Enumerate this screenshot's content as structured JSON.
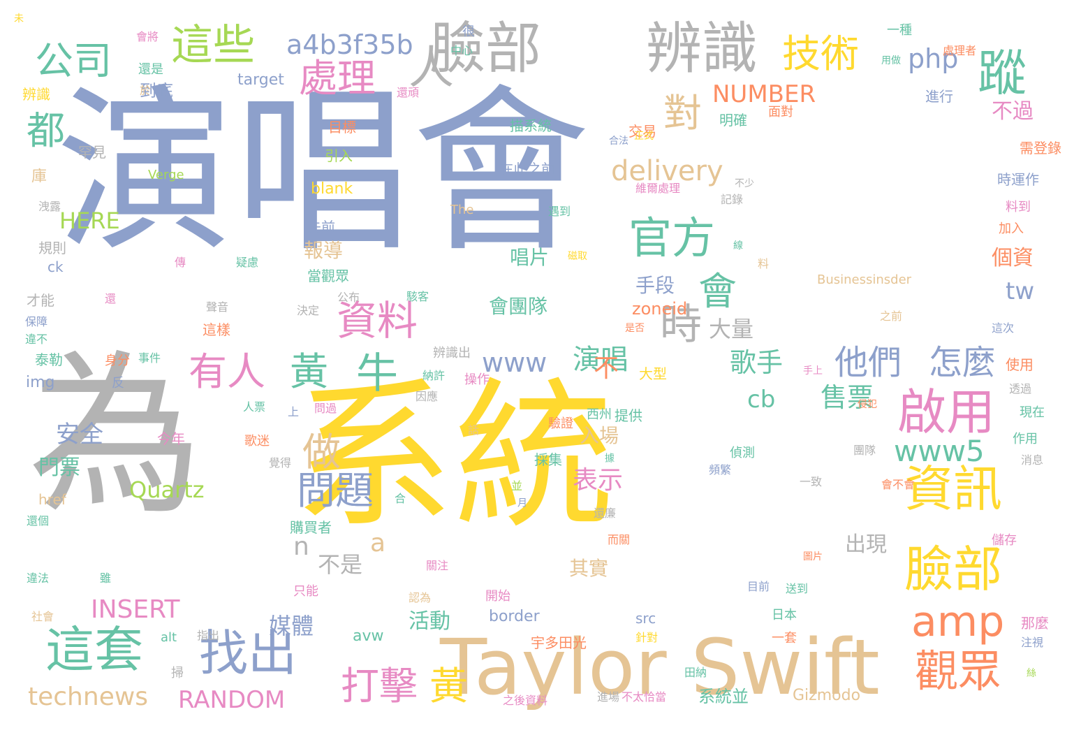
{
  "palette": {
    "slate": "#8da0cb",
    "gray": "#b3b3b3",
    "yellow": "#ffd92f",
    "tan": "#e5c494",
    "green": "#66c2a5",
    "orange": "#fc8d62",
    "pink": "#e78ac3",
    "lime": "#a6d854"
  },
  "words": [
    {
      "text": "演唱會",
      "color": "slate"
    },
    {
      "text": "為",
      "color": "gray"
    },
    {
      "text": "系統",
      "color": "yellow"
    },
    {
      "text": "Taylor Swift",
      "color": "tan"
    },
    {
      "text": "臉部",
      "color": "gray"
    },
    {
      "text": "辨識",
      "color": "gray"
    },
    {
      "text": "人",
      "color": "gray"
    },
    {
      "text": "這些",
      "color": "lime"
    },
    {
      "text": "公司",
      "color": "green"
    },
    {
      "text": "技術",
      "color": "yellow"
    },
    {
      "text": "蹤",
      "color": "green"
    },
    {
      "text": "a4b3f35b",
      "color": "slate"
    },
    {
      "text": "處理",
      "color": "pink"
    },
    {
      "text": "php",
      "color": "slate"
    },
    {
      "text": "對",
      "color": "tan"
    },
    {
      "text": "官方",
      "color": "green"
    },
    {
      "text": "會",
      "color": "green"
    },
    {
      "text": "時",
      "color": "gray"
    },
    {
      "text": "資料",
      "color": "pink"
    },
    {
      "text": "有人",
      "color": "pink"
    },
    {
      "text": "黃",
      "color": "green"
    },
    {
      "text": "牛",
      "color": "green"
    },
    {
      "text": "啟用",
      "color": "pink"
    },
    {
      "text": "資訊",
      "color": "yellow"
    },
    {
      "text": "臉部",
      "color": "yellow"
    },
    {
      "text": "amp",
      "color": "orange"
    },
    {
      "text": "觀眾",
      "color": "orange"
    },
    {
      "text": "這套",
      "color": "green"
    },
    {
      "text": "找出",
      "color": "slate"
    },
    {
      "text": "打擊",
      "color": "pink"
    },
    {
      "text": "黃",
      "color": "yellow"
    },
    {
      "text": "做",
      "color": "tan"
    },
    {
      "text": "問題",
      "color": "slate"
    },
    {
      "text": "他們",
      "color": "slate"
    },
    {
      "text": "怎麼",
      "color": "slate"
    },
    {
      "text": "delivery",
      "color": "tan"
    },
    {
      "text": "NUMBER",
      "color": "orange"
    },
    {
      "text": "都",
      "color": "green"
    },
    {
      "text": "www5",
      "color": "green"
    },
    {
      "text": "tw",
      "color": "slate"
    },
    {
      "text": "歌手",
      "color": "green"
    },
    {
      "text": "cb",
      "color": "green"
    },
    {
      "text": "售票",
      "color": "green"
    },
    {
      "text": "www",
      "color": "slate"
    },
    {
      "text": "演唱",
      "color": "green"
    },
    {
      "text": "technews",
      "color": "tan"
    },
    {
      "text": "RANDOM",
      "color": "pink"
    },
    {
      "text": "INSERT",
      "color": "pink"
    },
    {
      "text": "Quartz",
      "color": "lime"
    },
    {
      "text": "HERE",
      "color": "lime"
    },
    {
      "text": "表示",
      "color": "pink"
    },
    {
      "text": "不",
      "color": "orange"
    },
    {
      "text": "入場",
      "color": "tan"
    },
    {
      "text": "大量",
      "color": "gray"
    },
    {
      "text": "個資",
      "color": "orange"
    },
    {
      "text": "不過",
      "color": "pink"
    },
    {
      "text": "安全",
      "color": "slate"
    },
    {
      "text": "門票",
      "color": "green"
    },
    {
      "text": "媒體",
      "color": "slate"
    },
    {
      "text": "活動",
      "color": "green"
    },
    {
      "text": "a",
      "color": "tan"
    },
    {
      "text": "n",
      "color": "gray"
    },
    {
      "text": "不是",
      "color": "gray"
    },
    {
      "text": "出現",
      "color": "gray"
    },
    {
      "text": "其實",
      "color": "tan"
    },
    {
      "text": "手段",
      "color": "slate"
    },
    {
      "text": "會團隊",
      "color": "green"
    },
    {
      "text": "唱片",
      "color": "green"
    },
    {
      "text": "報導",
      "color": "tan"
    },
    {
      "text": "zoneid",
      "color": "orange"
    },
    {
      "text": "系統並",
      "color": "green"
    },
    {
      "text": "Gizmodo",
      "color": "tan"
    },
    {
      "text": "border",
      "color": "slate"
    },
    {
      "text": "avw",
      "color": "green"
    },
    {
      "text": "img",
      "color": "slate"
    },
    {
      "text": "到底",
      "color": "slate"
    },
    {
      "text": "target",
      "color": "slate"
    },
    {
      "text": "描系統",
      "color": "green"
    },
    {
      "text": "在此之前",
      "color": "slate"
    },
    {
      "text": "交易",
      "color": "orange"
    },
    {
      "text": "明確",
      "color": "green"
    },
    {
      "text": "面對",
      "color": "orange"
    },
    {
      "text": "blank",
      "color": "yellow"
    },
    {
      "text": "Verge",
      "color": "lime"
    },
    {
      "text": "The",
      "color": "tan"
    },
    {
      "text": "Businessinsder",
      "color": "tan"
    },
    {
      "text": "先前",
      "color": "slate"
    },
    {
      "text": "當觀眾",
      "color": "green"
    },
    {
      "text": "引入",
      "color": "lime"
    },
    {
      "text": "目標",
      "color": "orange"
    },
    {
      "text": "維爾處理",
      "color": "pink"
    },
    {
      "text": "記錄",
      "color": "gray"
    },
    {
      "text": "遇到",
      "color": "green"
    },
    {
      "text": "提供",
      "color": "green"
    },
    {
      "text": "採集",
      "color": "green"
    },
    {
      "text": "驗證",
      "color": "orange"
    },
    {
      "text": "西州",
      "color": "green"
    },
    {
      "text": "大型",
      "color": "yellow"
    },
    {
      "text": "操作",
      "color": "pink"
    },
    {
      "text": "辨識出",
      "color": "gray"
    },
    {
      "text": "納許",
      "color": "green"
    },
    {
      "text": "因應",
      "color": "gray"
    },
    {
      "text": "一種",
      "color": "green"
    },
    {
      "text": "處理者",
      "color": "orange"
    },
    {
      "text": "中心",
      "color": "green"
    },
    {
      "text": "很",
      "color": "slate"
    },
    {
      "text": "會將",
      "color": "pink"
    },
    {
      "text": "還是",
      "color": "green"
    },
    {
      "text": "於",
      "color": "tan"
    },
    {
      "text": "辨識",
      "color": "yellow"
    },
    {
      "text": "還頑",
      "color": "pink"
    },
    {
      "text": "罕見",
      "color": "gray"
    },
    {
      "text": "庫",
      "color": "tan"
    },
    {
      "text": "洩露",
      "color": "gray"
    },
    {
      "text": "規則",
      "color": "gray"
    },
    {
      "text": "ck",
      "color": "slate"
    },
    {
      "text": "才能",
      "color": "gray"
    },
    {
      "text": "保障",
      "color": "slate"
    },
    {
      "text": "違不",
      "color": "green"
    },
    {
      "text": "泰勒",
      "color": "green"
    },
    {
      "text": "傳",
      "color": "pink"
    },
    {
      "text": "疑慮",
      "color": "green"
    },
    {
      "text": "還",
      "color": "pink"
    },
    {
      "text": "聲音",
      "color": "gray"
    },
    {
      "text": "公布",
      "color": "gray"
    },
    {
      "text": "決定",
      "color": "gray"
    },
    {
      "text": "駭客",
      "color": "green"
    },
    {
      "text": "這樣",
      "color": "orange"
    },
    {
      "text": "身分",
      "color": "orange"
    },
    {
      "text": "事件",
      "color": "green"
    },
    {
      "text": "反",
      "color": "slate"
    },
    {
      "text": "人票",
      "color": "green"
    },
    {
      "text": "上",
      "color": "slate"
    },
    {
      "text": "問過",
      "color": "pink"
    },
    {
      "text": "今年",
      "color": "pink"
    },
    {
      "text": "歌迷",
      "color": "orange"
    },
    {
      "text": "覺得",
      "color": "gray"
    },
    {
      "text": "href",
      "color": "tan"
    },
    {
      "text": "合",
      "color": "green"
    },
    {
      "text": "還個",
      "color": "green"
    },
    {
      "text": "違法",
      "color": "green"
    },
    {
      "text": "雖",
      "color": "green"
    },
    {
      "text": "社會",
      "color": "tan"
    },
    {
      "text": "alt",
      "color": "green"
    },
    {
      "text": "指出",
      "color": "gray"
    },
    {
      "text": "掃",
      "color": "gray"
    },
    {
      "text": "只能",
      "color": "pink"
    },
    {
      "text": "認為",
      "color": "tan"
    },
    {
      "text": "關注",
      "color": "pink"
    },
    {
      "text": "購買者",
      "color": "green"
    },
    {
      "text": "開始",
      "color": "pink"
    },
    {
      "text": "src",
      "color": "slate"
    },
    {
      "text": "宇多田光",
      "color": "orange"
    },
    {
      "text": "針對",
      "color": "yellow"
    },
    {
      "text": "田納",
      "color": "green"
    },
    {
      "text": "之後資料",
      "color": "pink"
    },
    {
      "text": "進場",
      "color": "gray"
    },
    {
      "text": "不太恰當",
      "color": "pink"
    },
    {
      "text": "一套",
      "color": "orange"
    },
    {
      "text": "日本",
      "color": "green"
    },
    {
      "text": "送到",
      "color": "green"
    },
    {
      "text": "目前",
      "color": "slate"
    },
    {
      "text": "還廉",
      "color": "gray"
    },
    {
      "text": "而關",
      "color": "orange"
    },
    {
      "text": "圖片",
      "color": "orange"
    },
    {
      "text": "會不會",
      "color": "orange"
    },
    {
      "text": "一致",
      "color": "gray"
    },
    {
      "text": "頻繁",
      "color": "slate"
    },
    {
      "text": "偵測",
      "color": "green"
    },
    {
      "text": "據",
      "color": "green"
    },
    {
      "text": "並",
      "color": "lime"
    },
    {
      "text": "月",
      "color": "slate"
    },
    {
      "text": "話",
      "color": "tan"
    },
    {
      "text": "儲存",
      "color": "pink"
    },
    {
      "text": "那麼",
      "color": "pink"
    },
    {
      "text": "注視",
      "color": "slate"
    },
    {
      "text": "絲",
      "color": "lime"
    },
    {
      "text": "消息",
      "color": "gray"
    },
    {
      "text": "作用",
      "color": "green"
    },
    {
      "text": "現在",
      "color": "green"
    },
    {
      "text": "透過",
      "color": "gray"
    },
    {
      "text": "使用",
      "color": "orange"
    },
    {
      "text": "這次",
      "color": "slate"
    },
    {
      "text": "團隊",
      "color": "gray"
    },
    {
      "text": "侵犯",
      "color": "orange"
    },
    {
      "text": "手上",
      "color": "pink"
    },
    {
      "text": "是否",
      "color": "orange"
    },
    {
      "text": "之前",
      "color": "tan"
    },
    {
      "text": "料到",
      "color": "pink"
    },
    {
      "text": "加入",
      "color": "orange"
    },
    {
      "text": "時運作",
      "color": "slate"
    },
    {
      "text": "需登錄",
      "color": "orange"
    },
    {
      "text": "進行",
      "color": "slate"
    },
    {
      "text": "用做",
      "color": "green"
    },
    {
      "text": "合法",
      "color": "slate"
    },
    {
      "text": "正式",
      "color": "yellow"
    },
    {
      "text": "不少",
      "color": "gray"
    },
    {
      "text": "料",
      "color": "tan"
    },
    {
      "text": "線",
      "color": "green"
    },
    {
      "text": "磁取",
      "color": "yellow"
    },
    {
      "text": "未",
      "color": "yellow"
    }
  ]
}
